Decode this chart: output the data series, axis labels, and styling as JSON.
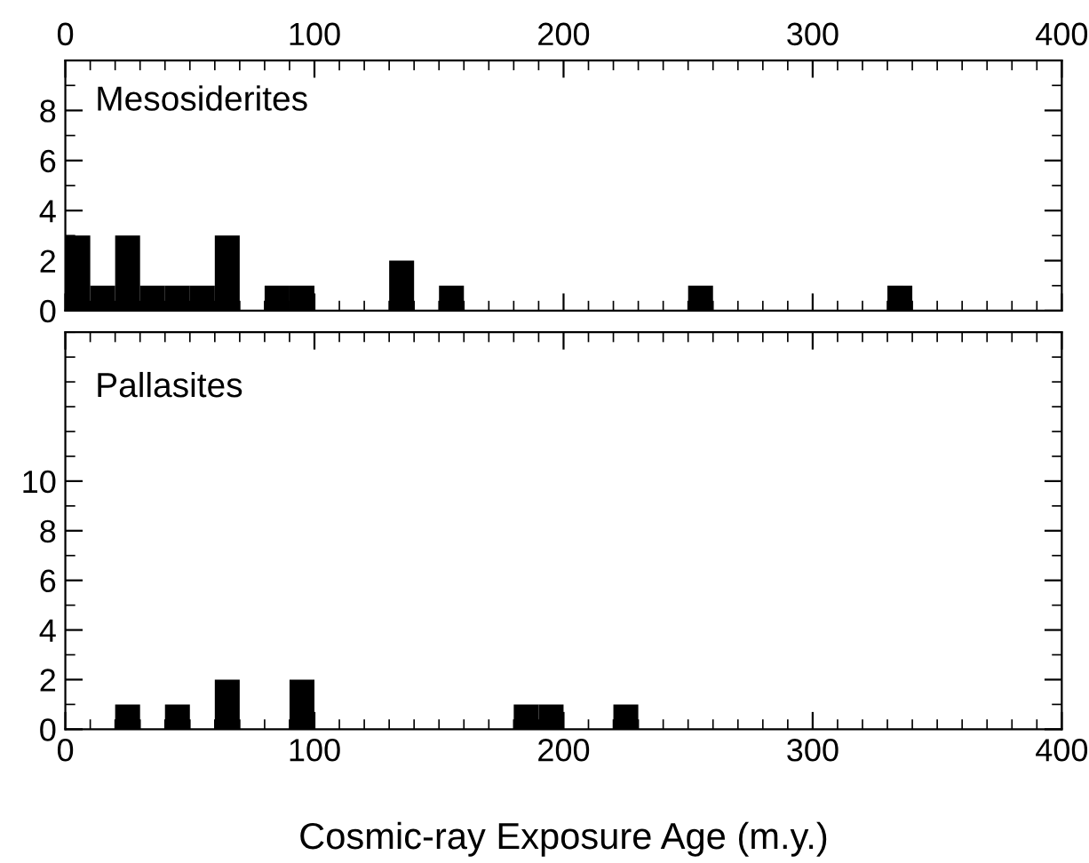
{
  "chart_data": [
    {
      "type": "histogram",
      "annotations": [
        "Mesosiderites"
      ],
      "bins": [
        0,
        10,
        20,
        30,
        40,
        50,
        60,
        70,
        80,
        90,
        100,
        110,
        120,
        130,
        140,
        150,
        160,
        170,
        180,
        190,
        200,
        210,
        220,
        230,
        240,
        250,
        260,
        270,
        280,
        290,
        300,
        310,
        320,
        330,
        340,
        350,
        360,
        370,
        380,
        390,
        400
      ],
      "values": [
        3,
        1,
        3,
        1,
        1,
        1,
        3,
        0,
        1,
        1,
        0,
        0,
        0,
        2,
        0,
        1,
        0,
        0,
        0,
        0,
        0,
        0,
        0,
        0,
        0,
        1,
        0,
        0,
        0,
        0,
        0,
        0,
        0,
        1,
        0,
        0,
        0,
        0,
        0,
        0
      ],
      "color": "#000000",
      "xlim": [
        0,
        400
      ],
      "xticks": [
        0,
        100,
        200,
        300,
        400
      ],
      "ylim": [
        0,
        10
      ],
      "yticks": [
        0,
        2,
        4,
        6,
        8
      ]
    },
    {
      "type": "histogram",
      "annotations": [
        "Pallasites"
      ],
      "xlabel": "Cosmic-ray Exposure Age (m.y.)",
      "bins": [
        0,
        10,
        20,
        30,
        40,
        50,
        60,
        70,
        80,
        90,
        100,
        110,
        120,
        130,
        140,
        150,
        160,
        170,
        180,
        190,
        200,
        210,
        220,
        230,
        240,
        250,
        260,
        270,
        280,
        290,
        300,
        310,
        320,
        330,
        340,
        350,
        360,
        370,
        380,
        390,
        400
      ],
      "values": [
        0,
        0,
        1,
        0,
        1,
        0,
        2,
        0,
        0,
        2,
        0,
        0,
        0,
        0,
        0,
        0,
        0,
        0,
        1,
        1,
        0,
        0,
        1,
        0,
        0,
        0,
        0,
        0,
        0,
        0,
        0,
        0,
        0,
        0,
        0,
        0,
        0,
        0,
        0,
        0
      ],
      "color": "#000000",
      "xlim": [
        0,
        400
      ],
      "xticks": [
        0,
        100,
        200,
        300,
        400
      ],
      "ylim": [
        0,
        16
      ],
      "yticks": [
        0,
        2,
        4,
        6,
        8,
        10
      ]
    }
  ]
}
